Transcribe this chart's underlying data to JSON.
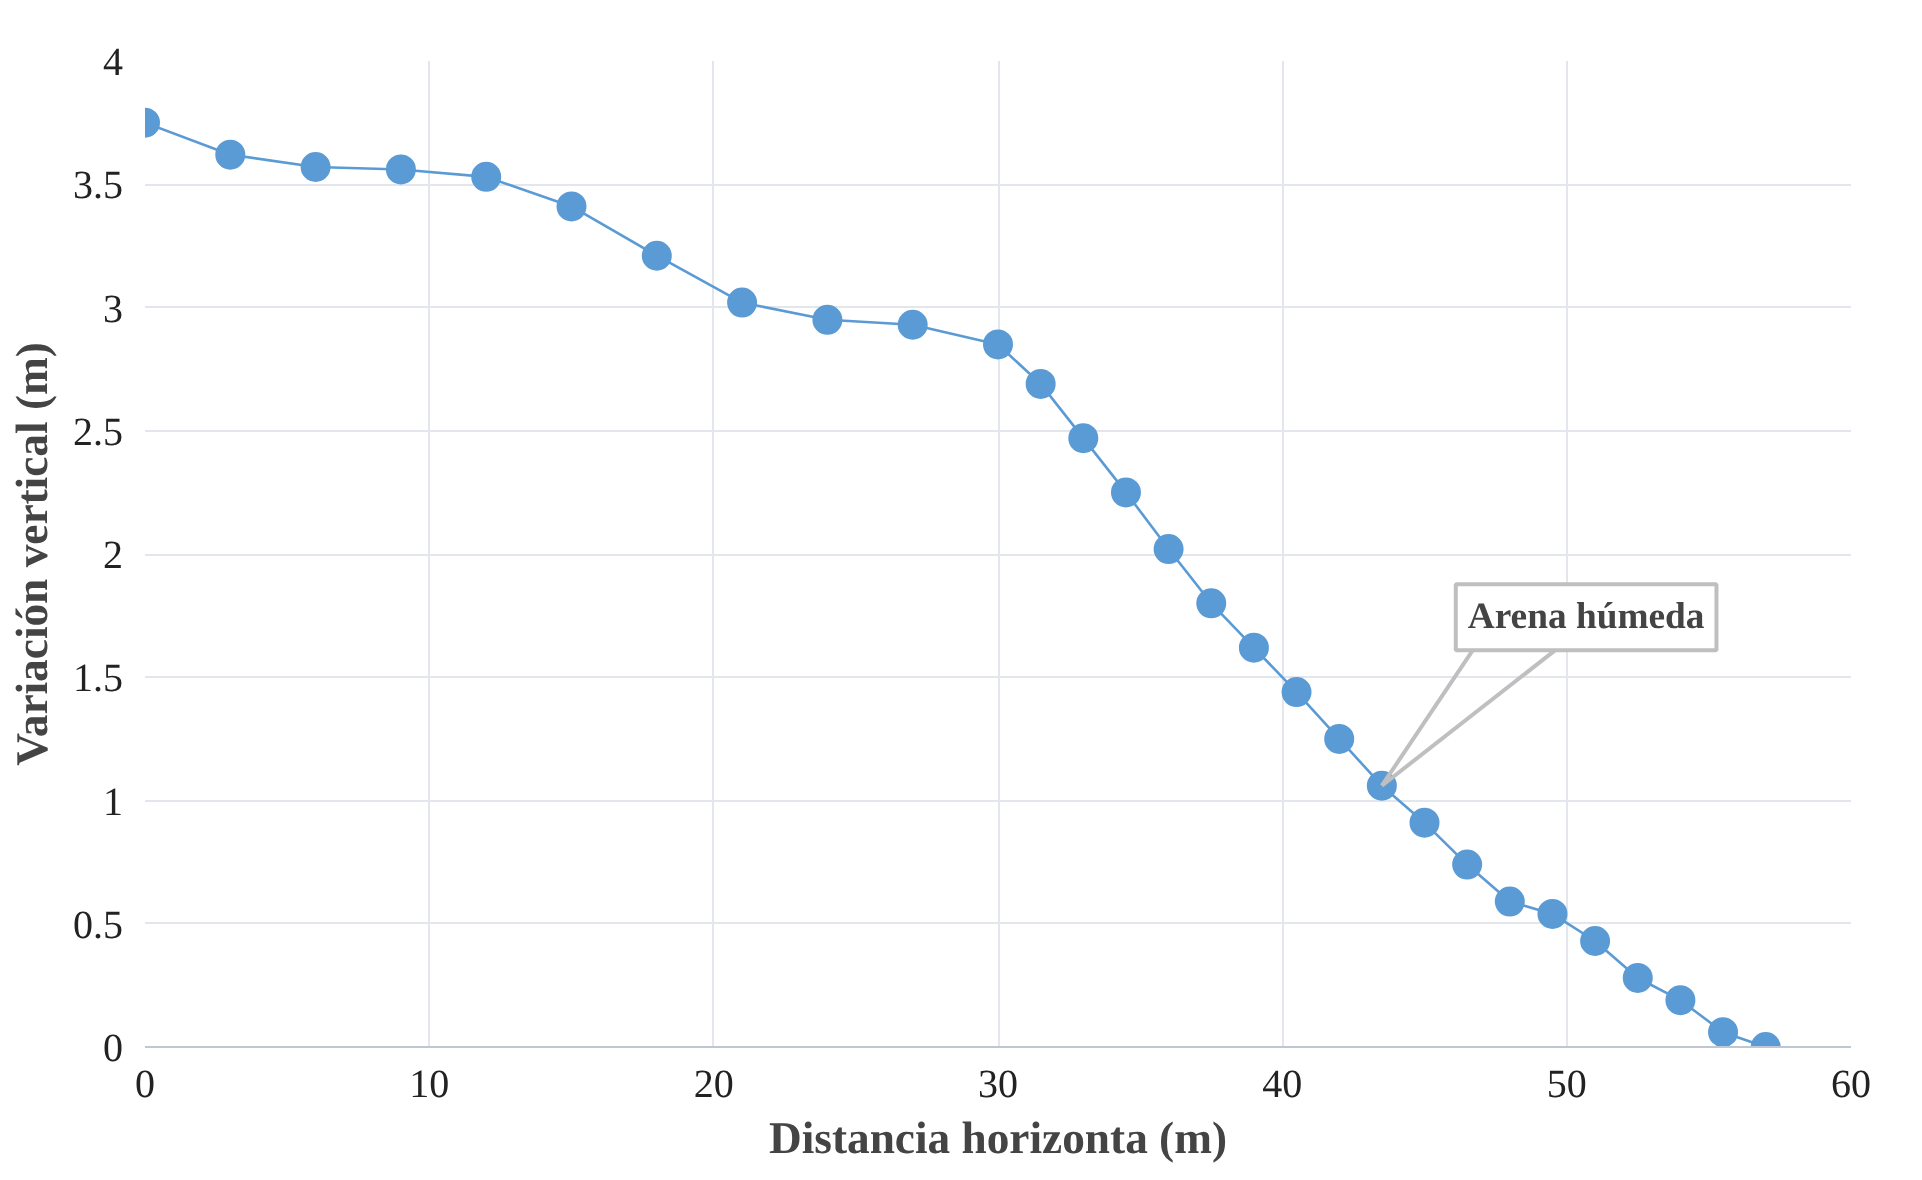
{
  "chart_data": {
    "type": "line",
    "xlabel": "Distancia horizonta (m)",
    "ylabel": "Variación vertical (m)",
    "x": [
      0,
      3,
      6,
      9,
      12,
      15,
      18,
      21,
      24,
      27,
      30,
      31.5,
      33,
      34.5,
      36,
      37.5,
      39,
      40.5,
      42,
      43.5,
      45,
      46.5,
      48,
      49.5,
      51,
      52.5,
      54,
      55.5,
      57
    ],
    "series": [
      {
        "color": "#5b9bd5",
        "values": [
          3.75,
          3.62,
          3.57,
          3.56,
          3.53,
          3.41,
          3.21,
          3.02,
          2.95,
          2.93,
          2.85,
          2.69,
          2.47,
          2.25,
          2.02,
          1.8,
          1.62,
          1.44,
          1.25,
          1.06,
          0.91,
          0.74,
          0.59,
          0.54,
          0.43,
          0.28,
          0.19,
          0.06,
          0
        ]
      }
    ],
    "xlim": [
      0,
      60
    ],
    "xticks": [
      0,
      10,
      20,
      30,
      40,
      50,
      60
    ],
    "ylim": [
      0,
      4
    ],
    "yticks": [
      0,
      0.5,
      1,
      1.5,
      2,
      2.5,
      3,
      3.5,
      4
    ],
    "grid": true,
    "marker": "circle",
    "line_style": "solid",
    "annotations": [
      {
        "text": "Arena húmeda",
        "x": 43.5,
        "y": 1.06
      }
    ]
  }
}
